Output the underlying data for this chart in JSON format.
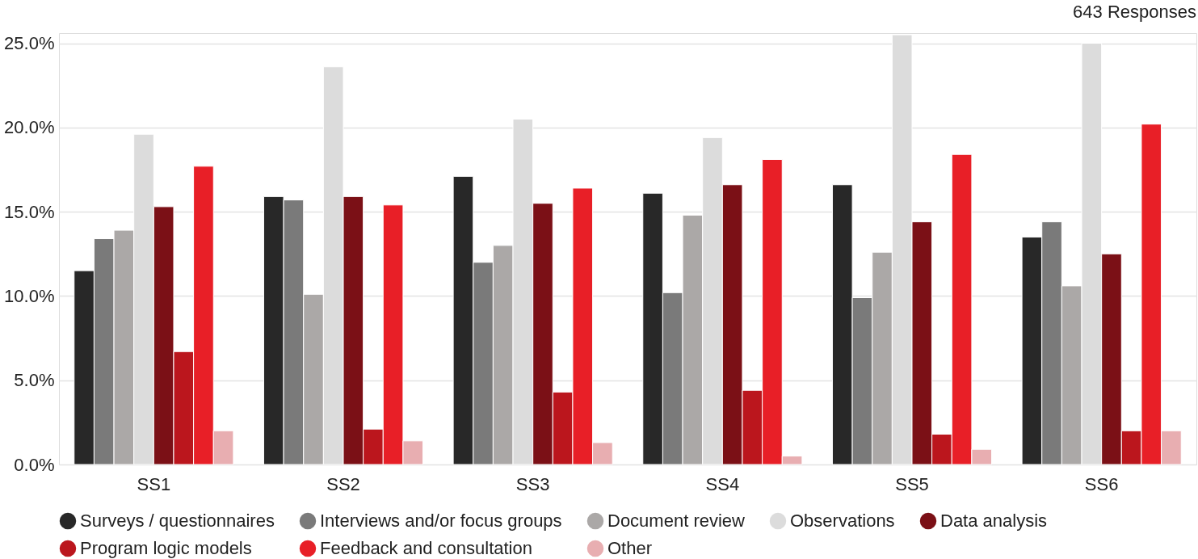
{
  "chart_data": {
    "type": "bar",
    "annotations": [
      "643 Responses"
    ],
    "categories": [
      "SS1",
      "SS2",
      "SS3",
      "SS4",
      "SS5",
      "SS6"
    ],
    "series": [
      {
        "name": "Surveys / questionnaires",
        "color": "#282828",
        "values": [
          11.5,
          15.9,
          17.1,
          16.1,
          16.6,
          13.5
        ]
      },
      {
        "name": "Interviews and/or focus groups",
        "color": "#7a7a7a",
        "values": [
          13.4,
          15.7,
          12.0,
          10.2,
          9.9,
          14.4
        ]
      },
      {
        "name": "Document review",
        "color": "#aba8a7",
        "values": [
          13.9,
          10.1,
          13.0,
          14.8,
          12.6,
          10.6
        ]
      },
      {
        "name": "Observations",
        "color": "#dcdcdc",
        "values": [
          19.6,
          23.6,
          20.5,
          19.4,
          25.5,
          25.0
        ]
      },
      {
        "name": "Data analysis",
        "color": "#7b1016",
        "values": [
          15.3,
          15.9,
          15.5,
          16.6,
          14.4,
          12.5
        ]
      },
      {
        "name": "Program logic models",
        "color": "#bb161d",
        "values": [
          6.7,
          2.1,
          4.3,
          4.4,
          1.8,
          2.0
        ]
      },
      {
        "name": "Feedback and consultation",
        "color": "#e81f27",
        "values": [
          17.7,
          15.4,
          16.4,
          18.1,
          18.4,
          20.2
        ]
      },
      {
        "name": "Other",
        "color": "#e8aeb1",
        "values": [
          2.0,
          1.4,
          1.3,
          0.5,
          0.9,
          2.0
        ]
      }
    ],
    "ylim": [
      0,
      25.6
    ],
    "yticks": [
      {
        "value": 0,
        "label": "0.0%"
      },
      {
        "value": 5,
        "label": "5.0%"
      },
      {
        "value": 10,
        "label": "10.0%"
      },
      {
        "value": 15,
        "label": "15.0%"
      },
      {
        "value": 20,
        "label": "20.0%"
      },
      {
        "value": 25,
        "label": "25.0%"
      }
    ],
    "grid": "y",
    "legend": "bottom",
    "marker": "circle"
  }
}
